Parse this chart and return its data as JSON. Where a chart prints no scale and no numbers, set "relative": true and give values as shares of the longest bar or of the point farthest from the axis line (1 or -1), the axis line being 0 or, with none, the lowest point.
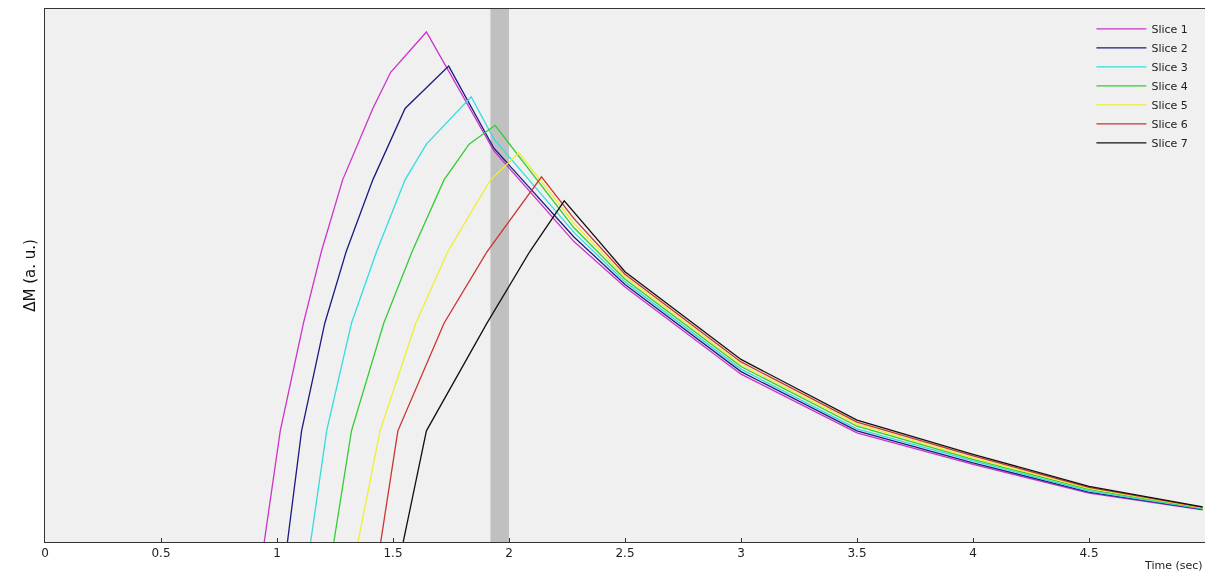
{
  "chart_data": {
    "type": "line",
    "xlabel": "Time (sec)",
    "ylabel": "ΔM (a. u.)",
    "relative": true,
    "xlim": [
      0,
      5
    ],
    "xticks": [
      0,
      0.5,
      1,
      1.5,
      2,
      2.5,
      3,
      3.5,
      4,
      4.5
    ],
    "tick_labels": "x",
    "grid": false,
    "legend": "top right",
    "marker": "none",
    "line_style": "solid",
    "bands": [
      {
        "axis": "x",
        "from": 1.92,
        "to": 2.0,
        "color": "#c0c0c0"
      }
    ],
    "series": [
      {
        "name": "Slice 1",
        "color": "#cc33cc",
        "x": [
          0.945,
          1.014,
          1.114,
          1.191,
          1.283,
          1.413,
          1.49,
          1.644,
          1.935,
          2.28,
          2.5,
          3.0,
          3.5,
          4.0,
          4.5,
          4.99
        ],
        "values": [
          0,
          0.218,
          0.429,
          0.569,
          0.71,
          0.85,
          0.921,
          1.0,
          0.767,
          0.589,
          0.5,
          0.329,
          0.214,
          0.152,
          0.096,
          0.063
        ]
      },
      {
        "name": "Slice 2",
        "color": "#1a1a80",
        "x": [
          1.045,
          1.106,
          1.206,
          1.298,
          1.413,
          1.552,
          1.74,
          1.935,
          2.28,
          2.5,
          3.0,
          3.5,
          4.0,
          4.5,
          4.99
        ],
        "values": [
          0,
          0.218,
          0.429,
          0.569,
          0.71,
          0.85,
          0.933,
          0.772,
          0.598,
          0.505,
          0.334,
          0.218,
          0.155,
          0.098,
          0.064
        ]
      },
      {
        "name": "Slice 3",
        "color": "#33dddd",
        "x": [
          1.145,
          1.214,
          1.321,
          1.429,
          1.552,
          1.644,
          1.837,
          1.935,
          2.28,
          2.5,
          3.0,
          3.5,
          4.0,
          4.5,
          4.99
        ],
        "values": [
          0,
          0.218,
          0.429,
          0.569,
          0.71,
          0.78,
          0.873,
          0.79,
          0.607,
          0.51,
          0.339,
          0.222,
          0.159,
          0.1,
          0.065
        ]
      },
      {
        "name": "Slice 4",
        "color": "#33cc33",
        "x": [
          1.245,
          1.321,
          1.46,
          1.582,
          1.72,
          1.828,
          1.94,
          2.28,
          2.5,
          3.0,
          3.5,
          4.0,
          4.5,
          4.99
        ],
        "values": [
          0,
          0.218,
          0.429,
          0.569,
          0.71,
          0.78,
          0.817,
          0.616,
          0.515,
          0.344,
          0.227,
          0.162,
          0.103,
          0.066
        ]
      },
      {
        "name": "Slice 5",
        "color": "#eeee33",
        "x": [
          1.349,
          1.444,
          1.598,
          1.736,
          1.92,
          2.043,
          2.28,
          2.5,
          3.0,
          3.5,
          4.0,
          4.5,
          4.99
        ],
        "values": [
          0,
          0.218,
          0.429,
          0.569,
          0.71,
          0.763,
          0.625,
          0.52,
          0.348,
          0.231,
          0.165,
          0.105,
          0.067
        ]
      },
      {
        "name": "Slice 6",
        "color": "#cc3333",
        "x": [
          1.447,
          1.521,
          1.72,
          1.905,
          2.14,
          2.28,
          2.5,
          3.0,
          3.5,
          4.0,
          4.5,
          4.99
        ],
        "values": [
          0,
          0.218,
          0.429,
          0.569,
          0.716,
          0.634,
          0.525,
          0.353,
          0.235,
          0.169,
          0.107,
          0.068
        ]
      },
      {
        "name": "Slice 7",
        "color": "#111111",
        "x": [
          1.544,
          1.644,
          1.905,
          2.089,
          2.238,
          2.5,
          3.0,
          3.5,
          4.0,
          4.5,
          4.99
        ],
        "values": [
          0,
          0.218,
          0.429,
          0.569,
          0.669,
          0.53,
          0.358,
          0.239,
          0.172,
          0.109,
          0.069
        ]
      }
    ]
  }
}
